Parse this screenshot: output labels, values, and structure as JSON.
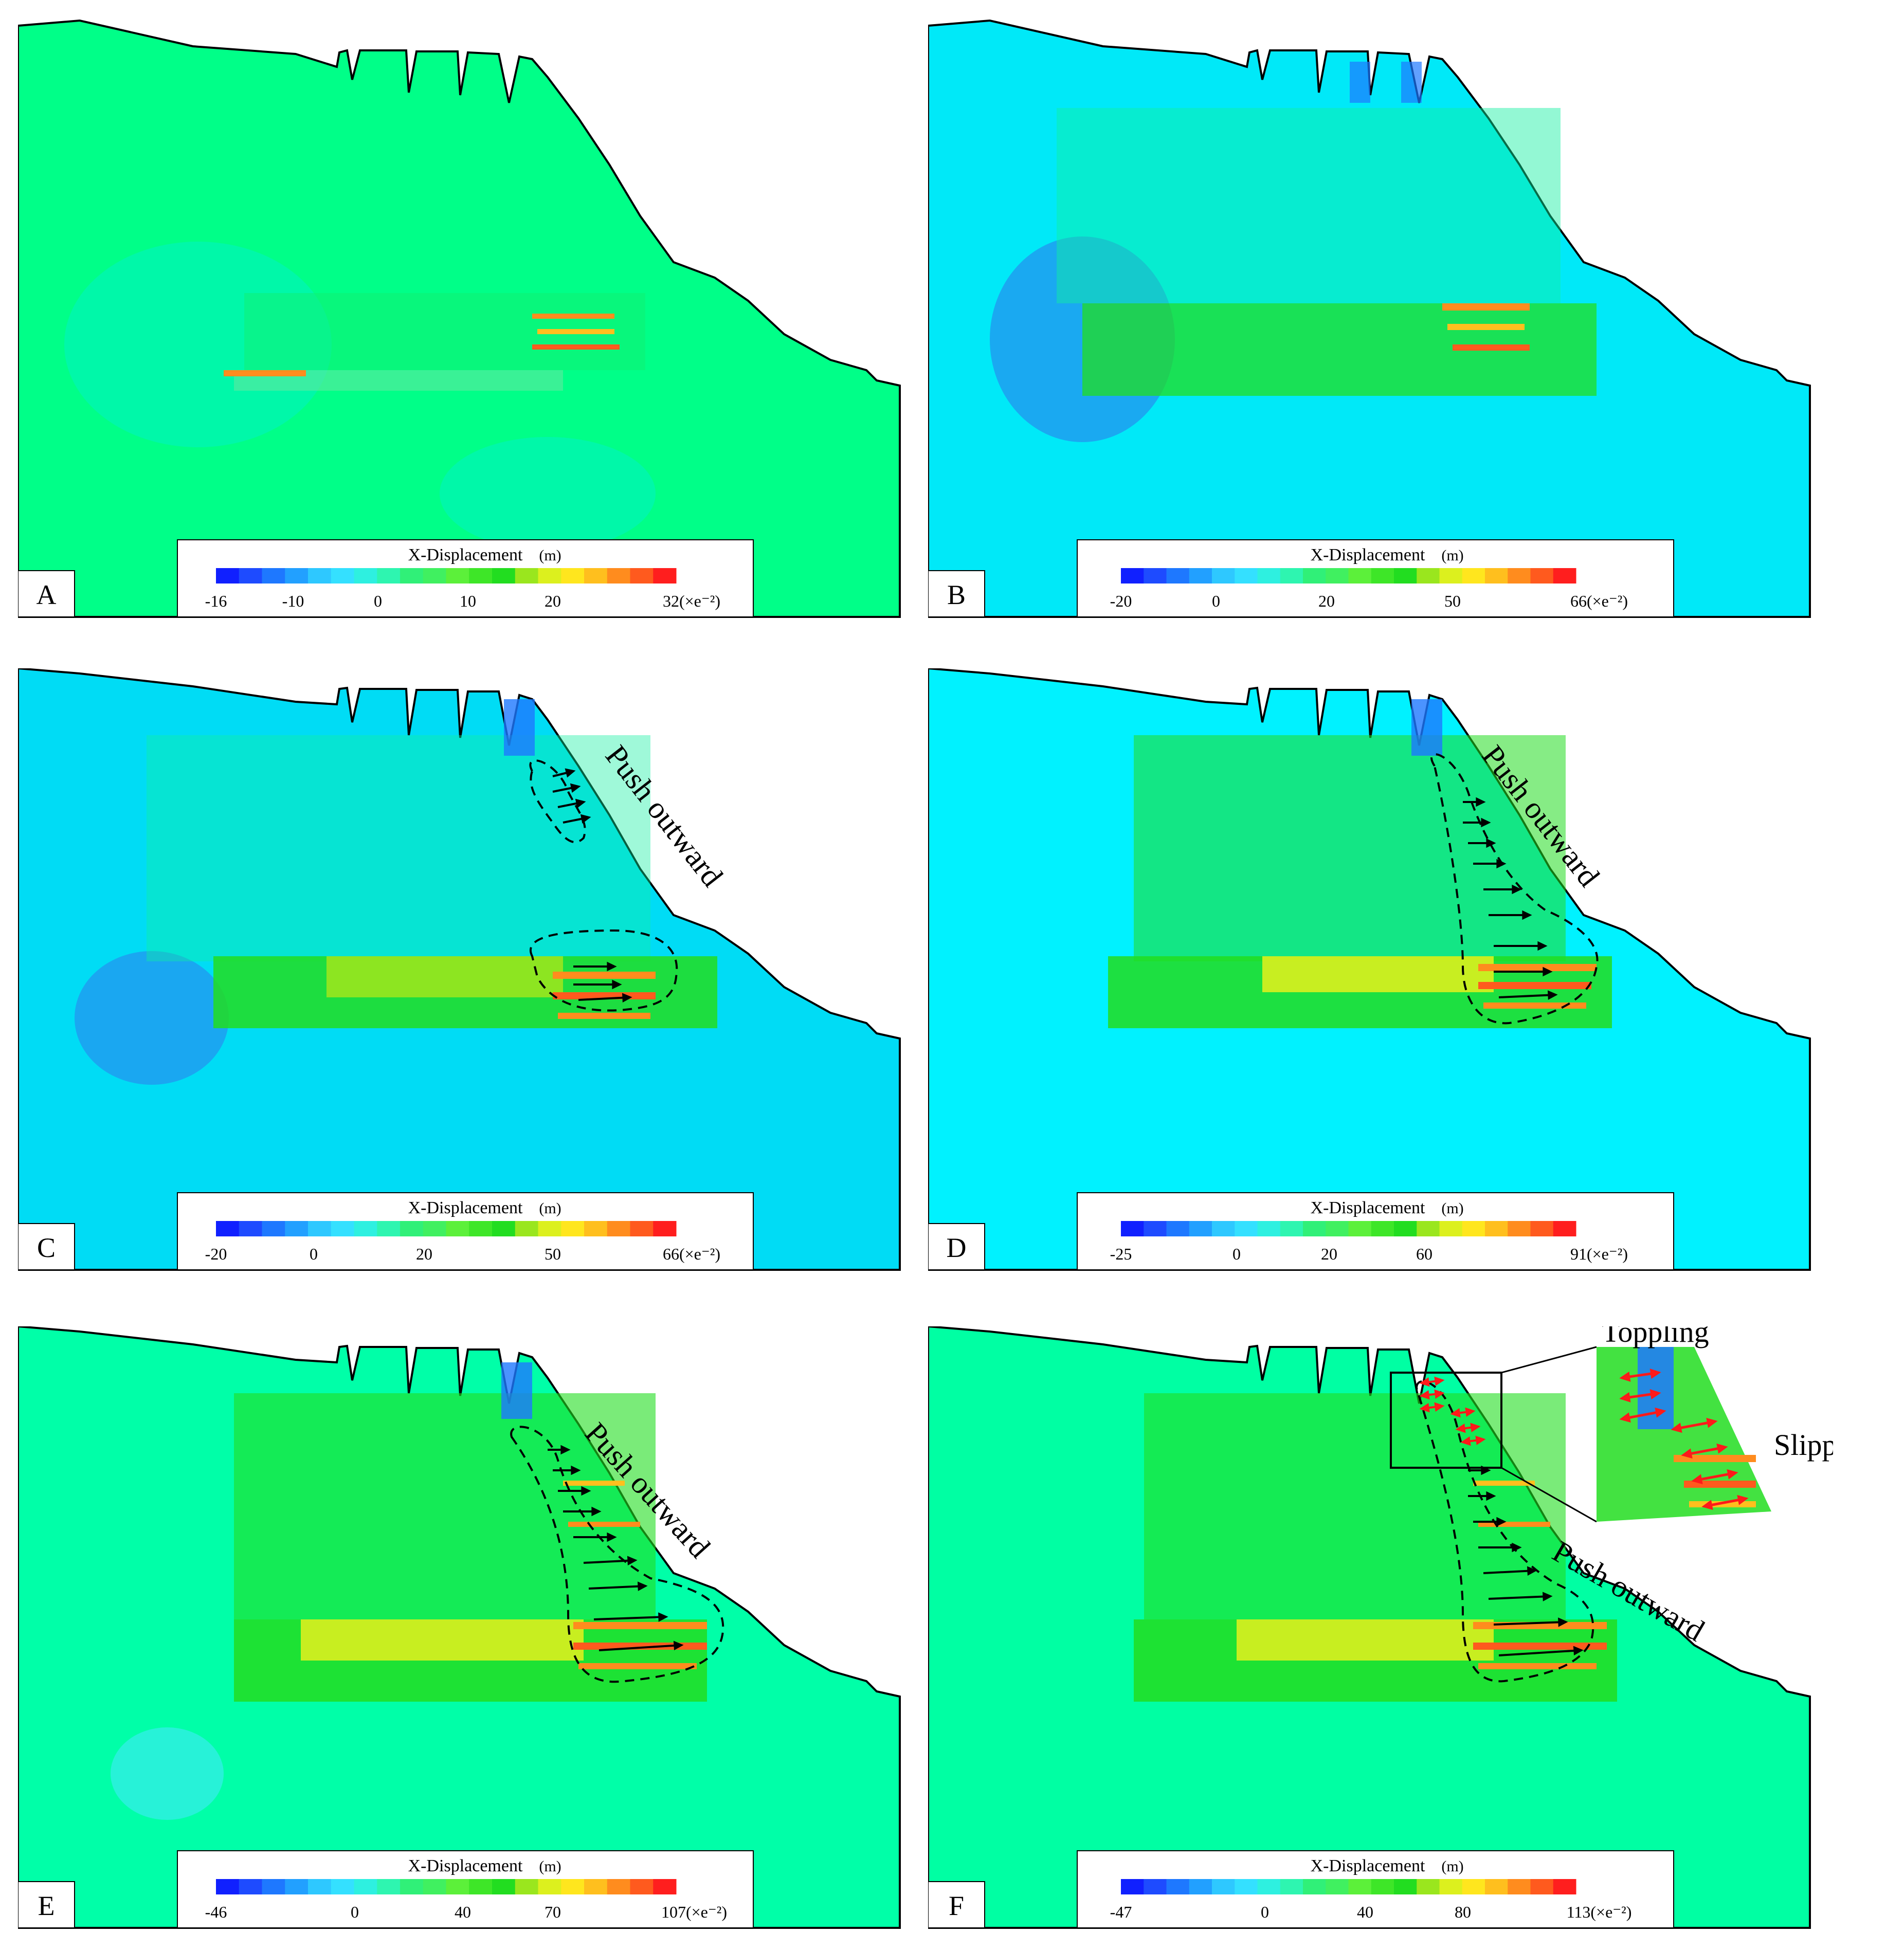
{
  "colors": {
    "background_a": "#00ff88",
    "background_b": "#00e9f8",
    "background_c": "#00dcf5",
    "background_d": "#00f2ff",
    "background_e": "#00ffa8",
    "background_f": "#00ffa3",
    "arrow_black": "#000000",
    "arrow_red": "#ff1a1a",
    "colorbar": [
      "#1020ff",
      "#1e4bff",
      "#1e78ff",
      "#22a0ff",
      "#2ec8ff",
      "#34e0ff",
      "#2ef0e0",
      "#2ef5b0",
      "#30f078",
      "#40f060",
      "#5cf03a",
      "#3ee628",
      "#22dd20",
      "#9ae61e",
      "#dcf01e",
      "#ffe61e",
      "#ffbf1e",
      "#ff8c1e",
      "#ff5a1e",
      "#ff1e1e"
    ]
  },
  "panels": [
    {
      "label": "A",
      "colorbar_title": "X-Displacement",
      "colorbar_unit": "(m)",
      "ticks": [
        "-16",
        "-10",
        "0",
        "10",
        "20",
        "32(×e⁻²)"
      ]
    },
    {
      "label": "B",
      "colorbar_title": "X-Displacement",
      "colorbar_unit": "(m)",
      "ticks": [
        "-20",
        "0",
        "20",
        "50",
        "66(×e⁻²)"
      ]
    },
    {
      "label": "C",
      "colorbar_title": "X-Displacement",
      "colorbar_unit": "(m)",
      "ticks": [
        "-20",
        "0",
        "20",
        "50",
        "66(×e⁻²)"
      ],
      "annotations": [
        "Push outward"
      ]
    },
    {
      "label": "D",
      "colorbar_title": "X-Displacement",
      "colorbar_unit": "(m)",
      "ticks": [
        "-25",
        "0",
        "20",
        "60",
        "91(×e⁻²)"
      ],
      "annotations": [
        "Push outward"
      ]
    },
    {
      "label": "E",
      "colorbar_title": "X-Displacement",
      "colorbar_unit": "(m)",
      "ticks": [
        "-46",
        "0",
        "40",
        "70",
        "107(×e⁻²)"
      ],
      "annotations": [
        "Push outward"
      ]
    },
    {
      "label": "F",
      "colorbar_title": "X-Displacement",
      "colorbar_unit": "(m)",
      "ticks": [
        "-47",
        "0",
        "40",
        "80",
        "113(×e⁻²)"
      ],
      "annotations": [
        "Push outward",
        "Toppling",
        "Slipping"
      ]
    }
  ]
}
